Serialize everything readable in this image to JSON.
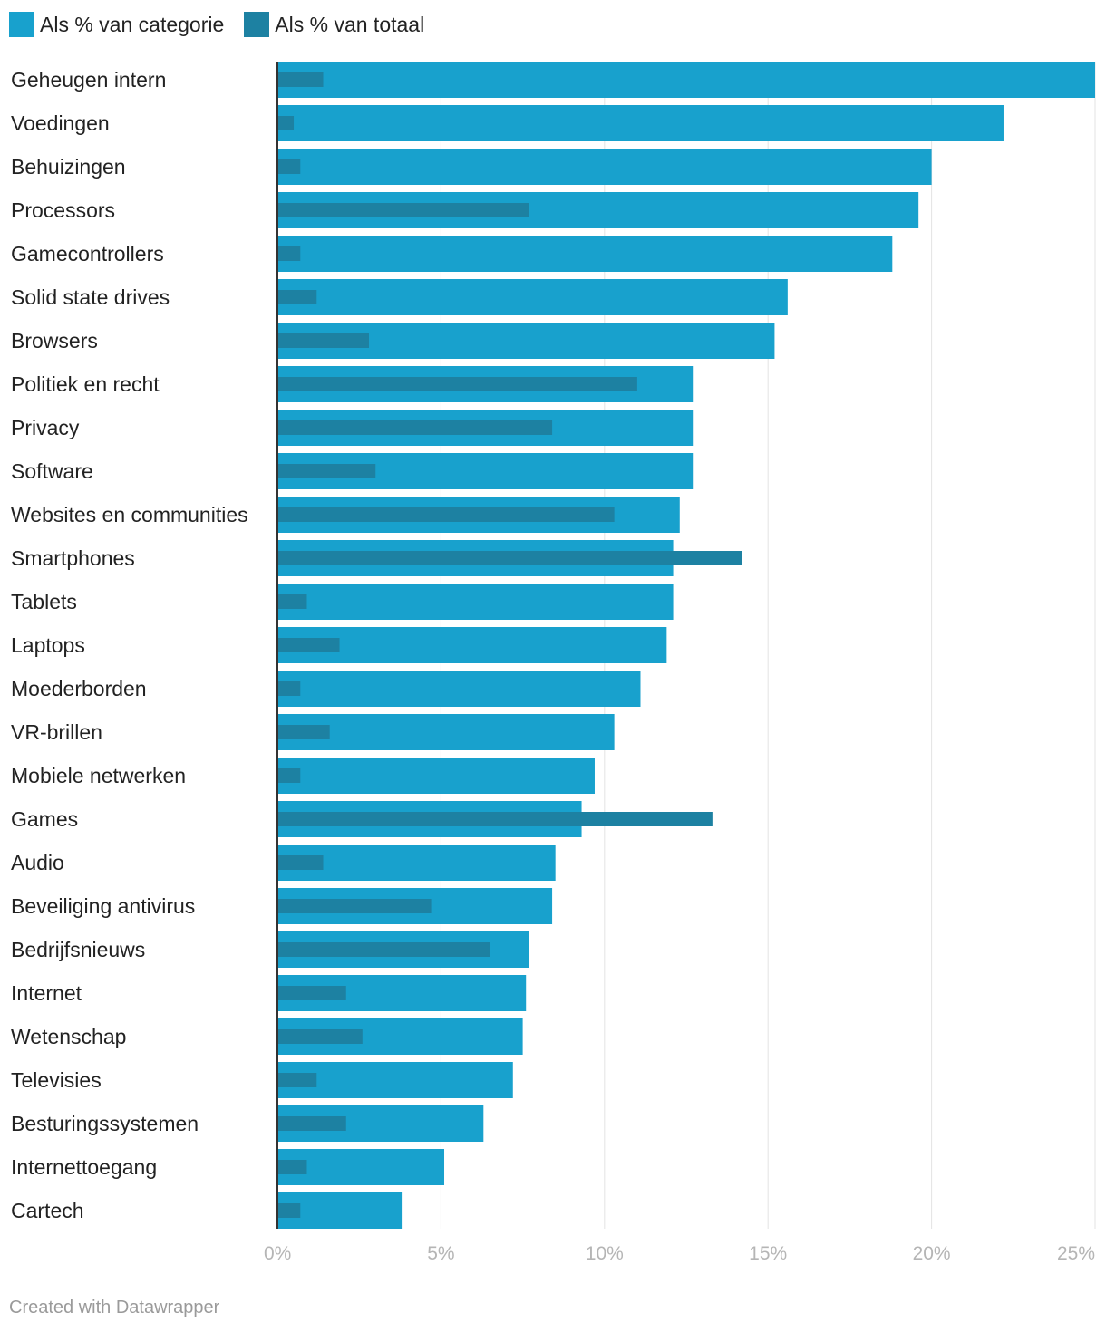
{
  "legend": {
    "items": [
      {
        "label": "Als % van categorie",
        "color": "#18a1cd"
      },
      {
        "label": "Als % van totaal",
        "color": "#1d81a2"
      }
    ]
  },
  "credit": "Created with Datawrapper",
  "chart_data": {
    "type": "bar",
    "orientation": "horizontal",
    "categories": [
      "Geheugen intern",
      "Voedingen",
      "Behuizingen",
      "Processors",
      "Gamecontrollers",
      "Solid state drives",
      "Browsers",
      "Politiek en recht",
      "Privacy",
      "Software",
      "Websites en communities",
      "Smartphones",
      "Tablets",
      "Laptops",
      "Moederborden",
      "VR-brillen",
      "Mobiele netwerken",
      "Games",
      "Audio",
      "Beveiliging antivirus",
      "Bedrijfsnieuws",
      "Internet",
      "Wetenschap",
      "Televisies",
      "Besturingssystemen",
      "Internettoegang",
      "Cartech"
    ],
    "series": [
      {
        "name": "Als % van categorie",
        "color": "#18a1cd",
        "values": [
          25.0,
          22.2,
          20.0,
          19.6,
          18.8,
          15.6,
          15.2,
          12.7,
          12.7,
          12.7,
          12.3,
          12.1,
          12.1,
          11.9,
          11.1,
          10.3,
          9.7,
          9.3,
          8.5,
          8.4,
          7.7,
          7.6,
          7.5,
          7.2,
          6.3,
          5.1,
          3.8
        ]
      },
      {
        "name": "Als % van totaal",
        "color": "#1d81a2",
        "values": [
          1.4,
          0.5,
          0.7,
          7.7,
          0.7,
          1.2,
          2.8,
          11.0,
          8.4,
          3.0,
          10.3,
          14.2,
          0.9,
          1.9,
          0.7,
          1.6,
          0.7,
          13.3,
          1.4,
          4.7,
          6.5,
          2.1,
          2.6,
          1.2,
          2.1,
          0.9,
          0.7
        ]
      }
    ],
    "xlim": [
      0,
      25
    ],
    "xticks": [
      0,
      5,
      10,
      15,
      20,
      25
    ],
    "xtick_labels": [
      "0%",
      "5%",
      "10%",
      "15%",
      "20%",
      "25%"
    ],
    "grid": true,
    "legend_position": "top-left"
  }
}
